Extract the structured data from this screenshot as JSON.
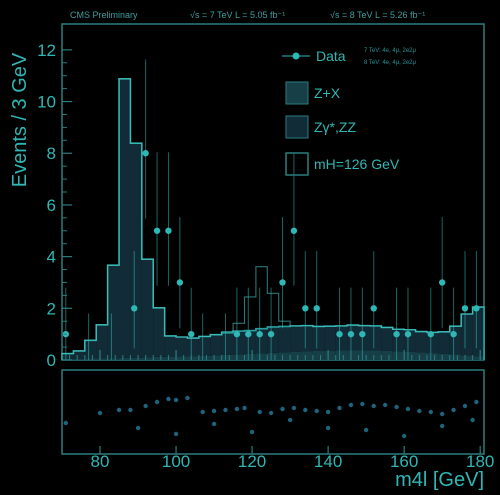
{
  "header": {
    "label": "CMS Preliminary",
    "lumi_7": "√s = 7 TeV  L = 5.05 fb⁻¹",
    "lumi_8": "√s = 8 TeV  L = 5.26 fb⁻¹"
  },
  "legend": {
    "data": "Data",
    "zx": "Z+X",
    "zz": "Zγ*,ZZ",
    "higgs": "mH=126 GeV",
    "small_lines": [
      "7 TeV: 4e, 4μ, 2e2μ",
      "8 TeV: 4e, 4μ, 2e2μ"
    ]
  },
  "colors": {
    "accent": "#2fb7b5",
    "zx_fill": "#173f48",
    "zz_fill": "#122c37",
    "background": "#000000"
  },
  "chart_data": {
    "type": "bar",
    "xlabel": "m4l [GeV]",
    "ylabel": "Events / 3 GeV",
    "xlim": [
      70,
      181
    ],
    "ylim": [
      0,
      13
    ],
    "xticks": [
      80,
      100,
      120,
      140,
      160,
      180
    ],
    "yticks": [
      0,
      2,
      4,
      6,
      8,
      10,
      12
    ],
    "bin_edges": [
      70,
      73,
      76,
      79,
      82,
      85,
      88,
      91,
      94,
      97,
      100,
      103,
      106,
      109,
      112,
      115,
      118,
      121,
      124,
      127,
      130,
      133,
      136,
      139,
      142,
      145,
      148,
      151,
      154,
      157,
      160,
      163,
      166,
      169,
      172,
      175,
      178,
      181
    ],
    "zx_values": [
      0.05,
      0.05,
      0.06,
      0.06,
      0.07,
      0.08,
      0.09,
      0.1,
      0.12,
      0.13,
      0.14,
      0.15,
      0.16,
      0.18,
      0.2,
      0.22,
      0.24,
      0.26,
      0.28,
      0.3,
      0.32,
      0.33,
      0.35,
      0.36,
      0.37,
      0.38,
      0.38,
      0.37,
      0.36,
      0.34,
      0.32,
      0.3,
      0.27,
      0.24,
      0.21,
      0.18,
      0.15
    ],
    "zz_values": [
      0.2,
      0.3,
      0.7,
      1.3,
      3.6,
      10.8,
      8.3,
      3.8,
      1.9,
      0.8,
      0.75,
      0.7,
      0.75,
      0.8,
      0.85,
      0.9,
      0.9,
      0.95,
      1.0,
      1.0,
      1.0,
      1.0,
      0.95,
      0.95,
      0.95,
      0.97,
      0.95,
      0.95,
      0.9,
      0.85,
      0.85,
      0.8,
      0.8,
      0.85,
      1.1,
      1.6,
      1.9
    ],
    "higgs_values": [
      0,
      0,
      0,
      0,
      0,
      0,
      0,
      0,
      0,
      0,
      0,
      0,
      0,
      0,
      0.05,
      0.3,
      1.3,
      2.4,
      1.3,
      0.2,
      0,
      0,
      0,
      0,
      0,
      0,
      0,
      0,
      0,
      0,
      0,
      0,
      0,
      0,
      0,
      0,
      0
    ],
    "data_points": [
      {
        "x": 71,
        "y": 1
      },
      {
        "x": 77,
        "y": 0
      },
      {
        "x": 83,
        "y": 0
      },
      {
        "x": 89,
        "y": 2
      },
      {
        "x": 92,
        "y": 8
      },
      {
        "x": 95,
        "y": 5
      },
      {
        "x": 98,
        "y": 5
      },
      {
        "x": 101,
        "y": 3
      },
      {
        "x": 104,
        "y": 1
      },
      {
        "x": 107,
        "y": 0
      },
      {
        "x": 113,
        "y": 0
      },
      {
        "x": 116,
        "y": 1
      },
      {
        "x": 119,
        "y": 1
      },
      {
        "x": 122,
        "y": 1
      },
      {
        "x": 125,
        "y": 1
      },
      {
        "x": 128,
        "y": 3
      },
      {
        "x": 131,
        "y": 5
      },
      {
        "x": 134,
        "y": 2
      },
      {
        "x": 137,
        "y": 2
      },
      {
        "x": 143,
        "y": 1
      },
      {
        "x": 146,
        "y": 1
      },
      {
        "x": 149,
        "y": 1
      },
      {
        "x": 152,
        "y": 2
      },
      {
        "x": 158,
        "y": 1
      },
      {
        "x": 161,
        "y": 1
      },
      {
        "x": 167,
        "y": 1
      },
      {
        "x": 170,
        "y": 3
      },
      {
        "x": 173,
        "y": 1
      },
      {
        "x": 176,
        "y": 2
      },
      {
        "x": 179,
        "y": 2
      }
    ]
  }
}
